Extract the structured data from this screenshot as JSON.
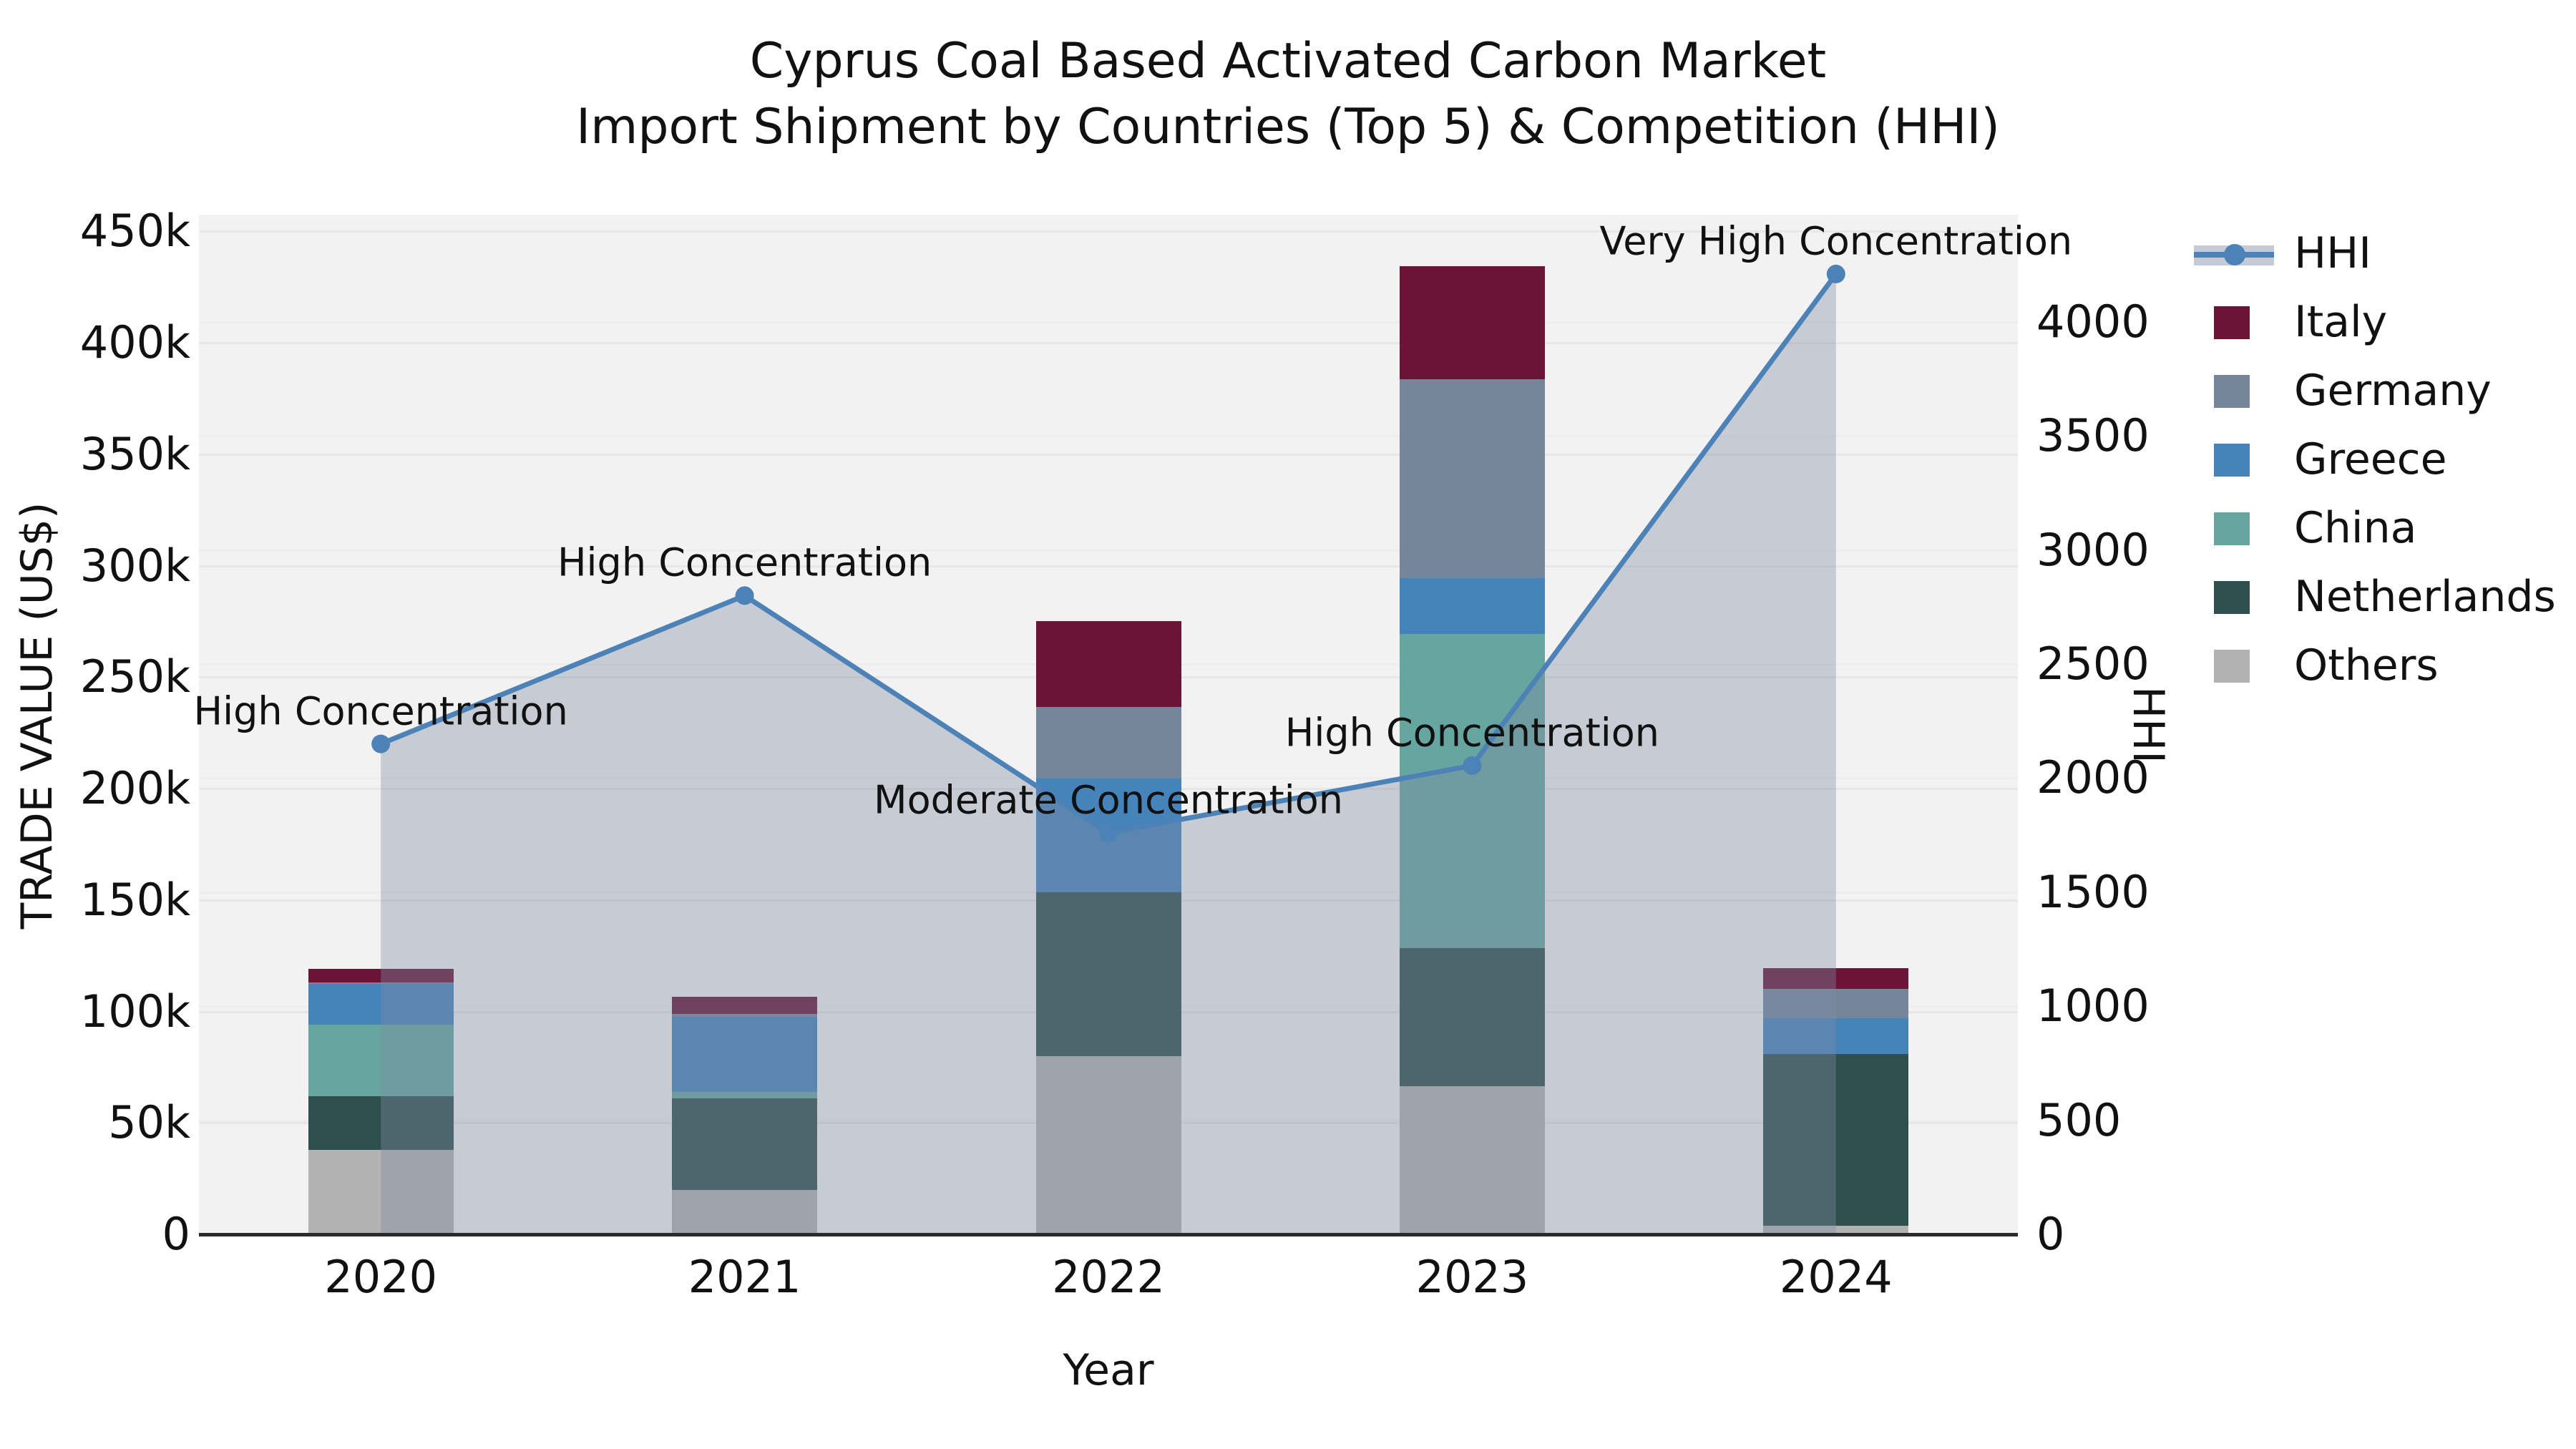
{
  "title": {
    "line1": "Cyprus Coal Based Activated Carbon Market",
    "line2": "Import Shipment by Countries (Top 5) & Competition (HHI)"
  },
  "axes": {
    "x_label": "Year",
    "y_left_label": "TRADE VALUE (US$)",
    "y_right_label": "HHI",
    "y_left_ticks": [
      "0",
      "50k",
      "100k",
      "150k",
      "200k",
      "250k",
      "300k",
      "350k",
      "400k",
      "450k"
    ],
    "y_right_ticks": [
      "0",
      "500",
      "1000",
      "1500",
      "2000",
      "2500",
      "3000",
      "3500",
      "4000"
    ]
  },
  "legend": {
    "items": [
      {
        "label": "HHI",
        "type": "line",
        "color": "#4C82B6"
      },
      {
        "label": "Italy",
        "type": "patch",
        "color": "#6A1438"
      },
      {
        "label": "Germany",
        "type": "patch",
        "color": "#75869B"
      },
      {
        "label": "Greece",
        "type": "patch",
        "color": "#4583BA"
      },
      {
        "label": "China",
        "type": "patch",
        "color": "#66A5A0"
      },
      {
        "label": "Netherlands",
        "type": "patch",
        "color": "#2F4F4E"
      },
      {
        "label": "Others",
        "type": "patch",
        "color": "#B2B2B2"
      }
    ]
  },
  "annotations": [
    {
      "year": "2020",
      "text": "High Concentration"
    },
    {
      "year": "2021",
      "text": "High Concentration"
    },
    {
      "year": "2022",
      "text": "Moderate Concentration"
    },
    {
      "year": "2023",
      "text": "High Concentration"
    },
    {
      "year": "2024",
      "text": "Very High Concentration"
    }
  ],
  "chart_data": {
    "type": "combo: stacked bar (trade value) + line with area fill (HHI)",
    "categories": [
      "2020",
      "2021",
      "2022",
      "2023",
      "2024"
    ],
    "bar_value_unit": "US$ thousands",
    "stack_order_bottom_to_top": [
      "Others",
      "Netherlands",
      "China",
      "Greece",
      "Germany",
      "Italy"
    ],
    "series": [
      {
        "name": "Italy",
        "color": "#6A1438",
        "values_k": [
          6,
          7.5,
          38.5,
          51,
          9.5
        ]
      },
      {
        "name": "Germany",
        "color": "#75869B",
        "values_k": [
          0.5,
          1.5,
          32,
          89,
          13
        ]
      },
      {
        "name": "Greece",
        "color": "#4583BA",
        "values_k": [
          18.5,
          33.5,
          51,
          25,
          16
        ]
      },
      {
        "name": "China",
        "color": "#66A5A0",
        "values_k": [
          32,
          3,
          0,
          141,
          0
        ]
      },
      {
        "name": "Netherlands",
        "color": "#2F4F4E",
        "values_k": [
          24,
          41,
          73.5,
          62,
          77
        ]
      },
      {
        "name": "Others",
        "color": "#B2B2B2",
        "values_k": [
          38,
          20,
          80,
          66.5,
          4
        ]
      }
    ],
    "bar_totals_k": [
      119,
      106.5,
      275,
      434.5,
      119.5
    ],
    "line": {
      "name": "HHI",
      "color": "#4C82B6",
      "area_fill": "rgba(127,140,164,0.38)",
      "values": [
        2150,
        2800,
        1760,
        2055,
        4210
      ]
    },
    "y_left": {
      "min": 0,
      "max_tick": 450000,
      "top_value": 457500,
      "tick_step": 50000
    },
    "y_right": {
      "min": 0,
      "max_tick": 4000,
      "top_value": 4470,
      "tick_step": 500
    },
    "grid": "horizontal",
    "legend_position": "right"
  }
}
